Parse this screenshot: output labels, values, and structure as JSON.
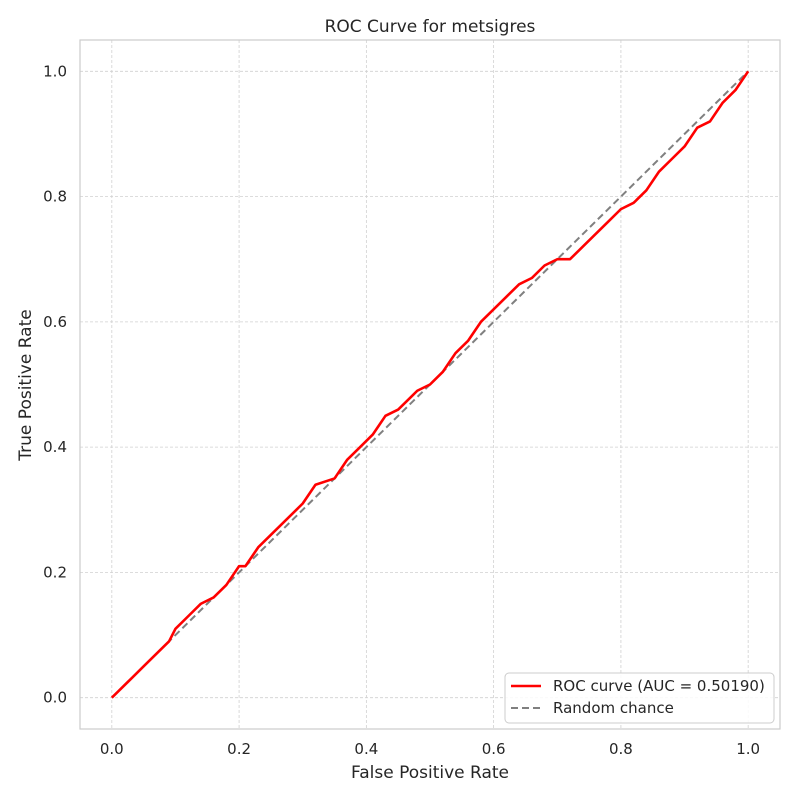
{
  "chart_data": {
    "type": "line",
    "title": "ROC Curve for metsigres",
    "xlabel": "False Positive Rate",
    "ylabel": "True Positive Rate",
    "xlim": [
      -0.05,
      1.05
    ],
    "ylim": [
      -0.05,
      1.05
    ],
    "xticks": [
      "0.0",
      "0.2",
      "0.4",
      "0.6",
      "0.8",
      "1.0"
    ],
    "yticks": [
      "0.0",
      "0.2",
      "0.4",
      "0.6",
      "0.8",
      "1.0"
    ],
    "grid": true,
    "legend_position": "lower-right",
    "series": [
      {
        "name": "ROC curve (AUC = 0.50190)",
        "color": "#ff0000",
        "style": "solid",
        "x": [
          0.0,
          0.01,
          0.03,
          0.05,
          0.07,
          0.09,
          0.1,
          0.12,
          0.14,
          0.16,
          0.18,
          0.2,
          0.21,
          0.23,
          0.25,
          0.27,
          0.29,
          0.3,
          0.32,
          0.35,
          0.37,
          0.39,
          0.41,
          0.43,
          0.45,
          0.47,
          0.48,
          0.5,
          0.52,
          0.54,
          0.56,
          0.58,
          0.6,
          0.62,
          0.64,
          0.66,
          0.68,
          0.7,
          0.72,
          0.74,
          0.76,
          0.78,
          0.8,
          0.82,
          0.84,
          0.86,
          0.88,
          0.9,
          0.92,
          0.94,
          0.96,
          0.98,
          1.0
        ],
        "y": [
          0.0,
          0.01,
          0.03,
          0.05,
          0.07,
          0.09,
          0.11,
          0.13,
          0.15,
          0.16,
          0.18,
          0.21,
          0.21,
          0.24,
          0.26,
          0.28,
          0.3,
          0.31,
          0.34,
          0.35,
          0.38,
          0.4,
          0.42,
          0.45,
          0.46,
          0.48,
          0.49,
          0.5,
          0.52,
          0.55,
          0.57,
          0.6,
          0.62,
          0.64,
          0.66,
          0.67,
          0.69,
          0.7,
          0.7,
          0.72,
          0.74,
          0.76,
          0.78,
          0.79,
          0.81,
          0.84,
          0.86,
          0.88,
          0.91,
          0.92,
          0.95,
          0.97,
          1.0
        ]
      },
      {
        "name": "Random chance",
        "color": "#808080",
        "style": "dashed",
        "x": [
          0.0,
          1.0
        ],
        "y": [
          0.0,
          1.0
        ]
      }
    ]
  }
}
